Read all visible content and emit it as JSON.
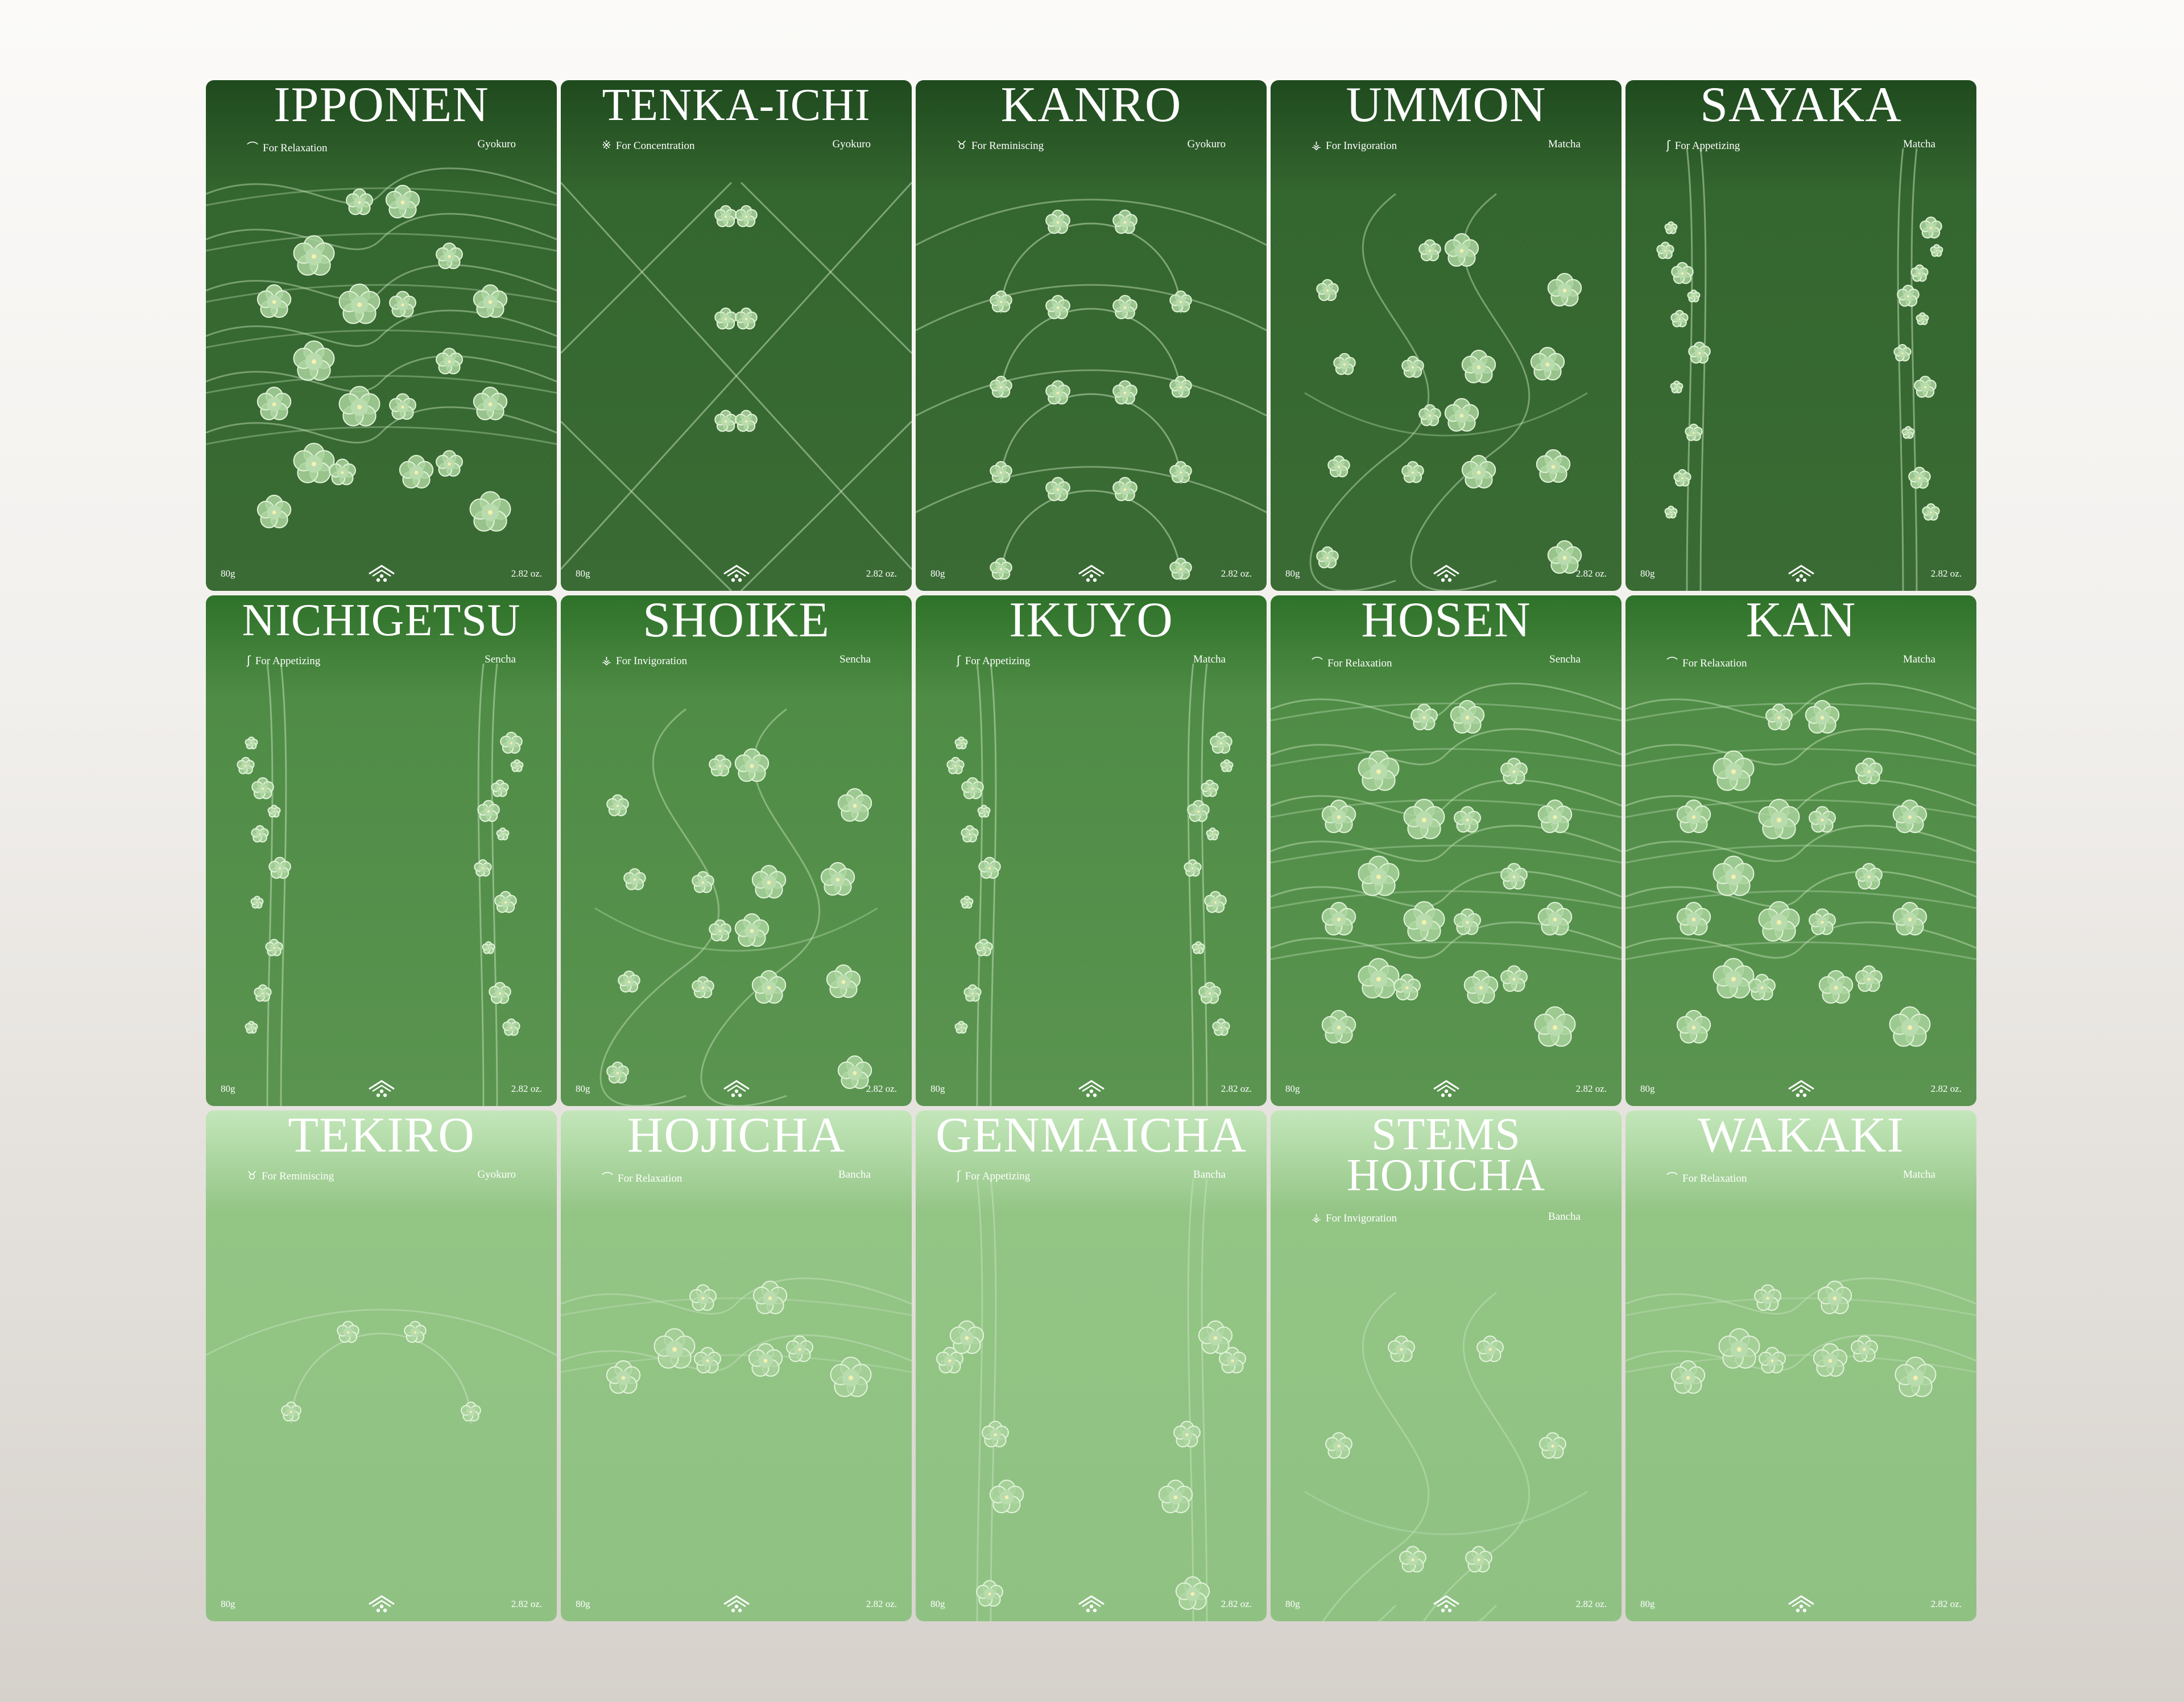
{
  "cards": [
    {
      "name": "IPPONEN",
      "purpose": "For Relaxation",
      "purpose_icon": "wave-icon",
      "type": "Gyokuro",
      "weight_g": "80g",
      "weight_oz": "2.82 oz.",
      "pattern": "waves"
    },
    {
      "name": "TENKA-ICHI",
      "purpose": "For Concentration",
      "purpose_icon": "cross-icon",
      "type": "Gyokuro",
      "weight_g": "80g",
      "weight_oz": "2.82 oz.",
      "pattern": "diagonal"
    },
    {
      "name": "KANRO",
      "purpose": "For Reminiscing",
      "purpose_icon": "arch-icon",
      "type": "Gyokuro",
      "weight_g": "80g",
      "weight_oz": "2.82 oz.",
      "pattern": "arches"
    },
    {
      "name": "UMMON",
      "purpose": "For Invigoration",
      "purpose_icon": "spring-icon",
      "type": "Matcha",
      "weight_g": "80g",
      "weight_oz": "2.82 oz.",
      "pattern": "braids"
    },
    {
      "name": "SAYAKA",
      "purpose": "For Appetizing",
      "purpose_icon": "hook-icon",
      "type": "Matcha",
      "weight_g": "80g",
      "weight_oz": "2.82 oz.",
      "pattern": "stems"
    },
    {
      "name": "NICHIGETSU",
      "purpose": "For Appetizing",
      "purpose_icon": "hook-icon",
      "type": "Sencha",
      "weight_g": "80g",
      "weight_oz": "2.82 oz.",
      "pattern": "stems"
    },
    {
      "name": "SHOIKE",
      "purpose": "For Invigoration",
      "purpose_icon": "spring-icon",
      "type": "Sencha",
      "weight_g": "80g",
      "weight_oz": "2.82 oz.",
      "pattern": "braids"
    },
    {
      "name": "IKUYO",
      "purpose": "For Appetizing",
      "purpose_icon": "hook-icon",
      "type": "Matcha",
      "weight_g": "80g",
      "weight_oz": "2.82 oz.",
      "pattern": "stems"
    },
    {
      "name": "HOSEN",
      "purpose": "For Relaxation",
      "purpose_icon": "wave-icon",
      "type": "Sencha",
      "weight_g": "80g",
      "weight_oz": "2.82 oz.",
      "pattern": "waves"
    },
    {
      "name": "KAN",
      "purpose": "For Relaxation",
      "purpose_icon": "wave-icon",
      "type": "Matcha",
      "weight_g": "80g",
      "weight_oz": "2.82 oz.",
      "pattern": "waves"
    },
    {
      "name": "TEKIRO",
      "purpose": "For Reminiscing",
      "purpose_icon": "arch-icon",
      "type": "Gyokuro",
      "weight_g": "80g",
      "weight_oz": "2.82 oz.",
      "pattern": "arches"
    },
    {
      "name": "HOJICHA",
      "purpose": "For Relaxation",
      "purpose_icon": "wave-icon",
      "type": "Bancha",
      "weight_g": "80g",
      "weight_oz": "2.82 oz.",
      "pattern": "waves"
    },
    {
      "name": "GENMAICHA",
      "purpose": "For Appetizing",
      "purpose_icon": "hook-icon",
      "type": "Bancha",
      "weight_g": "80g",
      "weight_oz": "2.82 oz.",
      "pattern": "stems"
    },
    {
      "name": "STEMS HOJICHA",
      "purpose": "For Invigoration",
      "purpose_icon": "spring-icon",
      "type": "Bancha",
      "weight_g": "80g",
      "weight_oz": "2.82 oz.",
      "pattern": "braids"
    },
    {
      "name": "WAKAKI",
      "purpose": "For Relaxation",
      "purpose_icon": "wave-icon",
      "type": "Matcha",
      "weight_g": "80g",
      "weight_oz": "2.82 oz.",
      "pattern": "waves"
    }
  ],
  "icon_glyphs": {
    "wave-icon": "⌒",
    "cross-icon": "※",
    "arch-icon": "♉",
    "spring-icon": "⚶",
    "hook-icon": "ʃ"
  },
  "colors": {
    "row_dark": "#3a6b34",
    "row_mid": "#5a9450",
    "row_light": "#8fc183",
    "blossom": "#a9d39c",
    "blossom_center": "#f4f0b0"
  }
}
